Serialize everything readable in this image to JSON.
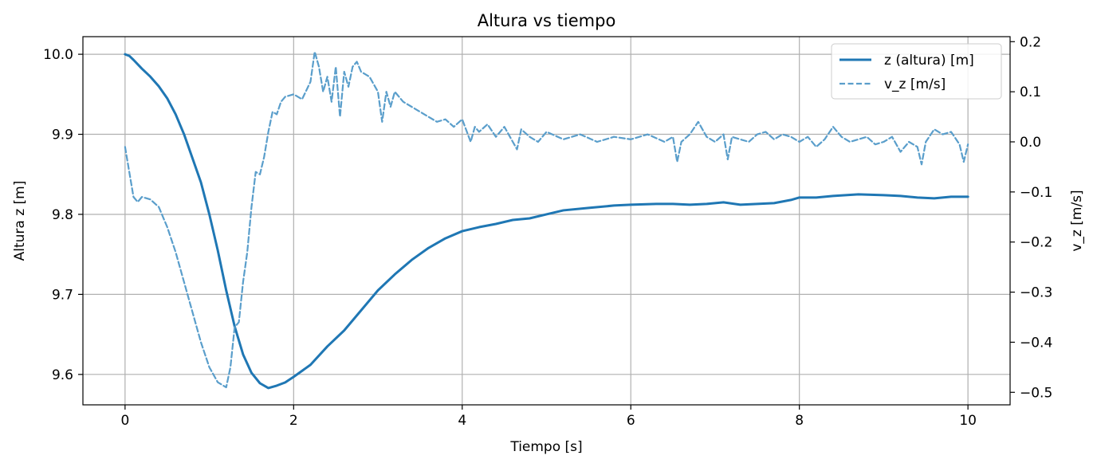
{
  "chart_data": {
    "type": "line",
    "title": "Altura vs tiempo",
    "xlabel": "Tiempo [s]",
    "ylabel_left": "Altura z [m]",
    "ylabel_right": "v_z [m/s]",
    "xlim": [
      -0.5,
      10.5
    ],
    "ylim_left": [
      9.562,
      10.022
    ],
    "ylim_right": [
      -0.525,
      0.21
    ],
    "x_ticks": [
      0,
      2,
      4,
      6,
      8,
      10
    ],
    "y_left_ticks": [
      9.6,
      9.7,
      9.8,
      9.9,
      10.0
    ],
    "y_left_tick_labels": [
      "9.6",
      "9.7",
      "9.8",
      "9.9",
      "10.0"
    ],
    "y_right_ticks": [
      -0.5,
      -0.4,
      -0.3,
      -0.2,
      -0.1,
      0.0,
      0.1,
      0.2
    ],
    "y_right_tick_labels": [
      "−0.5",
      "−0.4",
      "−0.3",
      "−0.2",
      "−0.1",
      "0.0",
      "0.1",
      "0.2"
    ],
    "grid": true,
    "legend_position": "top-right",
    "series": [
      {
        "name": "z (altura) [m]",
        "axis": "left",
        "style": "solid",
        "color": "#1f77b4",
        "x": [
          0,
          0.05,
          0.1,
          0.2,
          0.3,
          0.4,
          0.5,
          0.6,
          0.7,
          0.8,
          0.9,
          1.0,
          1.1,
          1.2,
          1.3,
          1.4,
          1.5,
          1.6,
          1.7,
          1.8,
          1.9,
          2.0,
          2.2,
          2.4,
          2.6,
          2.8,
          3.0,
          3.2,
          3.4,
          3.6,
          3.8,
          4.0,
          4.2,
          4.4,
          4.6,
          4.8,
          5.0,
          5.2,
          5.5,
          5.8,
          6.0,
          6.3,
          6.5,
          6.7,
          6.9,
          7.1,
          7.3,
          7.5,
          7.7,
          7.9,
          8.0,
          8.2,
          8.4,
          8.7,
          9.0,
          9.2,
          9.4,
          9.6,
          9.8,
          10.0
        ],
        "y": [
          10.0,
          9.998,
          9.993,
          9.982,
          9.972,
          9.96,
          9.945,
          9.925,
          9.9,
          9.87,
          9.84,
          9.8,
          9.755,
          9.705,
          9.66,
          9.625,
          9.602,
          9.589,
          9.583,
          9.586,
          9.59,
          9.597,
          9.612,
          9.635,
          9.655,
          9.68,
          9.705,
          9.725,
          9.743,
          9.758,
          9.77,
          9.779,
          9.784,
          9.788,
          9.793,
          9.795,
          9.8,
          9.805,
          9.808,
          9.811,
          9.812,
          9.813,
          9.813,
          9.812,
          9.813,
          9.815,
          9.812,
          9.813,
          9.814,
          9.818,
          9.821,
          9.821,
          9.823,
          9.825,
          9.824,
          9.823,
          9.821,
          9.82,
          9.822,
          9.822
        ]
      },
      {
        "name": "v_z [m/s]",
        "axis": "right",
        "style": "dashed",
        "color": "#5a9ecb",
        "x": [
          0,
          0.05,
          0.1,
          0.15,
          0.2,
          0.3,
          0.4,
          0.5,
          0.6,
          0.7,
          0.8,
          0.9,
          1.0,
          1.1,
          1.2,
          1.25,
          1.3,
          1.35,
          1.4,
          1.45,
          1.5,
          1.55,
          1.6,
          1.65,
          1.7,
          1.75,
          1.8,
          1.85,
          1.9,
          2.0,
          2.1,
          2.2,
          2.25,
          2.3,
          2.35,
          2.4,
          2.45,
          2.5,
          2.55,
          2.6,
          2.65,
          2.7,
          2.75,
          2.8,
          2.9,
          3.0,
          3.05,
          3.1,
          3.15,
          3.2,
          3.3,
          3.4,
          3.5,
          3.6,
          3.7,
          3.8,
          3.9,
          4.0,
          4.1,
          4.15,
          4.2,
          4.3,
          4.4,
          4.5,
          4.6,
          4.65,
          4.7,
          4.8,
          4.9,
          5.0,
          5.2,
          5.4,
          5.6,
          5.8,
          6.0,
          6.2,
          6.4,
          6.5,
          6.55,
          6.6,
          6.7,
          6.8,
          6.9,
          7.0,
          7.1,
          7.15,
          7.2,
          7.3,
          7.4,
          7.5,
          7.6,
          7.7,
          7.8,
          7.9,
          8.0,
          8.1,
          8.2,
          8.3,
          8.4,
          8.5,
          8.6,
          8.7,
          8.8,
          8.9,
          9.0,
          9.1,
          9.2,
          9.3,
          9.4,
          9.45,
          9.5,
          9.6,
          9.7,
          9.8,
          9.9,
          9.95,
          10.0
        ],
        "y": [
          -0.01,
          -0.06,
          -0.11,
          -0.12,
          -0.11,
          -0.115,
          -0.13,
          -0.17,
          -0.22,
          -0.28,
          -0.34,
          -0.4,
          -0.45,
          -0.48,
          -0.49,
          -0.45,
          -0.37,
          -0.36,
          -0.28,
          -0.22,
          -0.13,
          -0.06,
          -0.065,
          -0.03,
          0.02,
          0.06,
          0.055,
          0.08,
          0.09,
          0.095,
          0.085,
          0.12,
          0.18,
          0.15,
          0.1,
          0.13,
          0.08,
          0.15,
          0.05,
          0.14,
          0.11,
          0.15,
          0.16,
          0.14,
          0.13,
          0.1,
          0.04,
          0.1,
          0.07,
          0.1,
          0.08,
          0.07,
          0.06,
          0.05,
          0.04,
          0.045,
          0.03,
          0.045,
          0.0,
          0.03,
          0.02,
          0.035,
          0.01,
          0.03,
          0.0,
          -0.015,
          0.025,
          0.01,
          0.0,
          0.02,
          0.005,
          0.015,
          0.0,
          0.01,
          0.005,
          0.015,
          0.0,
          0.01,
          -0.04,
          0.0,
          0.015,
          0.04,
          0.01,
          0.0,
          0.015,
          -0.035,
          0.01,
          0.005,
          0.0,
          0.015,
          0.02,
          0.005,
          0.015,
          0.01,
          0.0,
          0.01,
          -0.01,
          0.005,
          0.03,
          0.01,
          0.0,
          0.005,
          0.01,
          -0.005,
          0.0,
          0.01,
          -0.02,
          0.0,
          -0.01,
          -0.045,
          0.0,
          0.025,
          0.015,
          0.02,
          -0.005,
          -0.04,
          -0.005
        ]
      }
    ]
  }
}
